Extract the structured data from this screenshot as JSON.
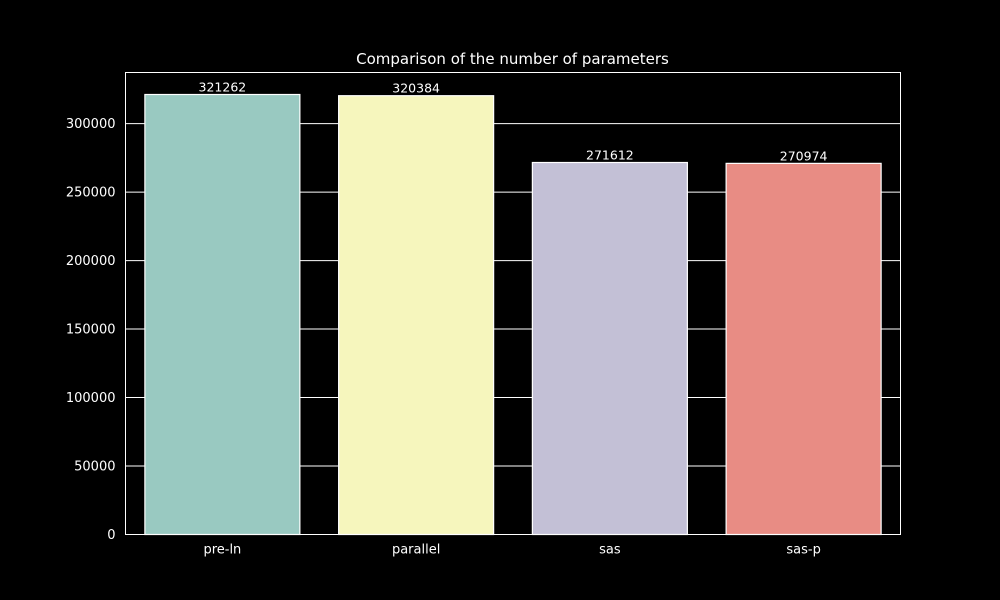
{
  "chart_data": {
    "type": "bar",
    "title": "Comparison of the number of parameters",
    "xlabel": "",
    "ylabel": "",
    "categories": [
      "pre-ln",
      "parallel",
      "sas",
      "sas-p"
    ],
    "values": [
      321262,
      320384,
      271612,
      270974
    ],
    "data_labels": [
      "321262",
      "320384",
      "271612",
      "270974"
    ],
    "colors": [
      "#99c9c1",
      "#f6f6bd",
      "#c3c0d6",
      "#e88c84"
    ],
    "bar_edge_color": "#ffffff",
    "ylim": [
      0,
      337326
    ],
    "yticks": [
      0,
      50000,
      100000,
      150000,
      200000,
      250000,
      300000
    ],
    "ytick_labels": [
      "0",
      "50000",
      "100000",
      "150000",
      "200000",
      "250000",
      "300000"
    ],
    "grid": "y",
    "background": "#000000",
    "text_color": "#ffffff"
  }
}
